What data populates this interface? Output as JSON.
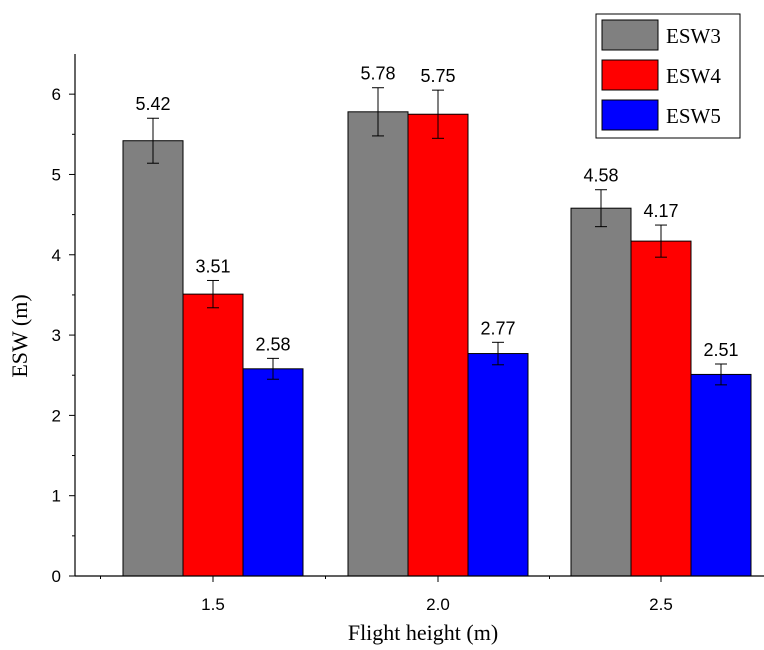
{
  "chart_data": {
    "type": "bar",
    "title": "",
    "xlabel": "Flight height (m)",
    "ylabel": "ESW (m)",
    "categories": [
      "1.5",
      "2.0",
      "2.5"
    ],
    "ylim": [
      0,
      6.5
    ],
    "yticks": [
      0,
      1,
      2,
      3,
      4,
      5,
      6
    ],
    "legend_position": "top-right",
    "grid": false,
    "series": [
      {
        "name": "ESW3",
        "color": "#808080",
        "values": [
          5.42,
          5.78,
          4.58
        ],
        "labels": [
          "5.42",
          "5.78",
          "4.58"
        ],
        "errors": [
          0.28,
          0.3,
          0.23
        ]
      },
      {
        "name": "ESW4",
        "color": "#ff0000",
        "values": [
          3.51,
          5.75,
          4.17
        ],
        "labels": [
          "3.51",
          "5.75",
          "4.17"
        ],
        "errors": [
          0.17,
          0.3,
          0.2
        ]
      },
      {
        "name": "ESW5",
        "color": "#0000ff",
        "values": [
          2.58,
          2.77,
          2.51
        ],
        "labels": [
          "2.58",
          "2.77",
          "2.51"
        ],
        "errors": [
          0.13,
          0.14,
          0.13
        ]
      }
    ]
  }
}
